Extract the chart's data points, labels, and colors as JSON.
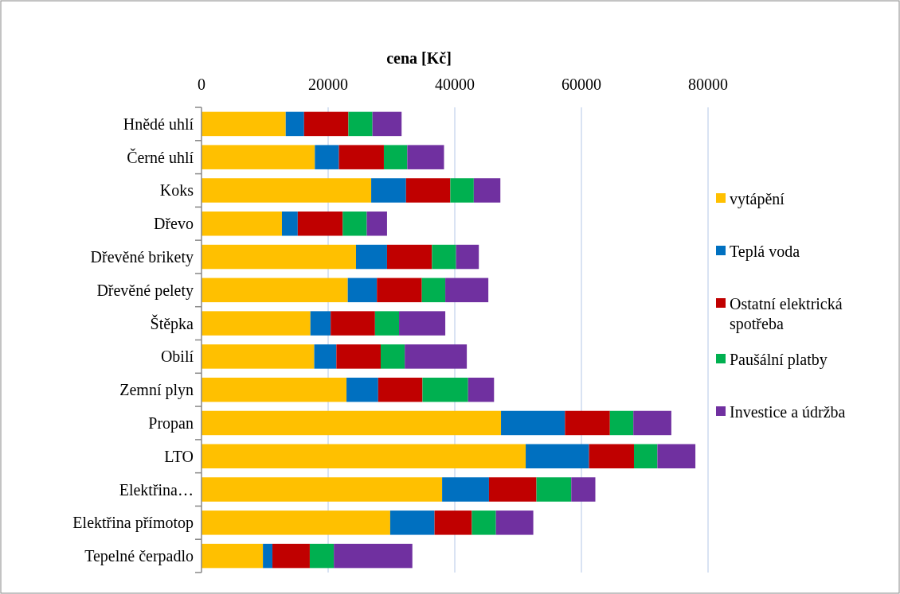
{
  "chart_data": {
    "type": "bar",
    "orientation": "horizontal",
    "stacked": true,
    "xlabel": "cena [Kč]",
    "categories": [
      "Hnědé uhlí",
      "Černé uhlí",
      "Koks",
      "Dřevo",
      "Dřevěné brikety",
      "Dřevěné pelety",
      "Štěpka",
      "Obilí",
      "Zemní plyn",
      "Propan",
      "LTO",
      "Elektřina…",
      "Elektřina přímotop",
      "Tepelné čerpadlo"
    ],
    "series": [
      {
        "name": "vytápění",
        "color": "#ffc000",
        "values": [
          13300,
          17900,
          26800,
          12700,
          24400,
          23100,
          17200,
          17800,
          22900,
          47300,
          51200,
          38000,
          29800,
          9700
        ]
      },
      {
        "name": "Teplá voda",
        "color": "#0070c0",
        "values": [
          2900,
          3800,
          5500,
          2500,
          4900,
          4600,
          3200,
          3500,
          5000,
          10100,
          10000,
          7400,
          7000,
          1500
        ]
      },
      {
        "name": "Ostatní elektrická spotřeba",
        "color": "#c00000",
        "values": [
          7000,
          7100,
          7000,
          7100,
          7100,
          7100,
          7000,
          7000,
          7000,
          7100,
          7100,
          7500,
          5900,
          5900
        ]
      },
      {
        "name": "Paušální platby",
        "color": "#00b050",
        "values": [
          3800,
          3700,
          3700,
          3800,
          3800,
          3700,
          3800,
          3800,
          7200,
          3700,
          3700,
          5500,
          3800,
          3800
        ]
      },
      {
        "name": "Investice a údržba",
        "color": "#7030a0",
        "values": [
          4600,
          5800,
          4200,
          3200,
          3600,
          6800,
          7300,
          9800,
          4100,
          6000,
          6000,
          3800,
          5900,
          12400
        ]
      }
    ],
    "xlim": [
      0,
      80000
    ],
    "xticks": [
      0,
      20000,
      40000,
      60000,
      80000
    ],
    "grid": "x",
    "legend": "right"
  }
}
